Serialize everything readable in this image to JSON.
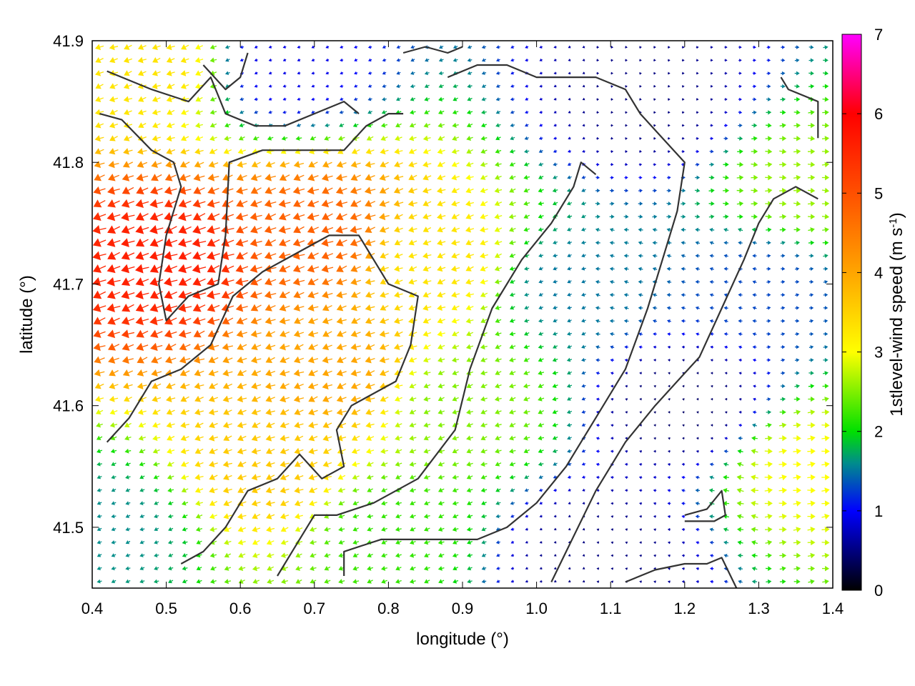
{
  "chart_data": {
    "type": "vector-field",
    "title": "",
    "xlabel": "longitude (°)",
    "ylabel": "latitude (°)",
    "colorbar_label_main": "1stlevel-wind speed (m s",
    "colorbar_label_sup": "-1",
    "colorbar_label_end": ")",
    "xlim": [
      0.4,
      1.4
    ],
    "ylim": [
      41.45,
      41.9
    ],
    "xticks": [
      0.4,
      0.5,
      0.6,
      0.7,
      0.8,
      0.9,
      1.0,
      1.1,
      1.2,
      1.3,
      1.4
    ],
    "xtick_labels": [
      "0.4",
      "0.5",
      "0.6",
      "0.7",
      "0.8",
      "0.9",
      "1.0",
      "1.1",
      "1.2",
      "1.3",
      "1.4"
    ],
    "yticks": [
      41.5,
      41.6,
      41.7,
      41.8,
      41.9
    ],
    "ytick_labels": [
      "41.5",
      "41.6",
      "41.7",
      "41.8",
      "41.9"
    ],
    "colorbar_range": [
      0,
      7
    ],
    "colorbar_ticks": [
      0,
      1,
      2,
      3,
      4,
      5,
      6,
      7
    ],
    "colorbar_tick_labels": [
      "0",
      "1",
      "2",
      "3",
      "4",
      "5",
      "6",
      "7"
    ],
    "colormap_stops": [
      {
        "value": 0,
        "color": "#000000"
      },
      {
        "value": 1,
        "color": "#0000ff"
      },
      {
        "value": 1.6,
        "color": "#008c8c"
      },
      {
        "value": 2,
        "color": "#00e000"
      },
      {
        "value": 3,
        "color": "#ffff00"
      },
      {
        "value": 4,
        "color": "#ffa500"
      },
      {
        "value": 5,
        "color": "#ff5000"
      },
      {
        "value": 6,
        "color": "#ff0000"
      },
      {
        "value": 7,
        "color": "#ff00ff"
      }
    ],
    "grid": false,
    "speed_centers": [
      {
        "lon": 0.5,
        "lat": 41.72,
        "speed": 5.6
      },
      {
        "lon": 0.7,
        "lat": 41.74,
        "speed": 4.8
      },
      {
        "lon": 0.72,
        "lat": 41.63,
        "speed": 4.0
      },
      {
        "lon": 0.64,
        "lat": 41.55,
        "speed": 3.6
      },
      {
        "lon": 0.86,
        "lat": 41.72,
        "speed": 3.3
      },
      {
        "lon": 0.48,
        "lat": 41.88,
        "speed": 3.3
      },
      {
        "lon": 0.9,
        "lat": 41.6,
        "speed": 2.5
      },
      {
        "lon": 1.05,
        "lat": 41.7,
        "speed": 1.5
      },
      {
        "lon": 1.15,
        "lat": 41.85,
        "speed": 0.5
      },
      {
        "lon": 1.2,
        "lat": 41.6,
        "speed": 0.4
      },
      {
        "lon": 1.37,
        "lat": 41.55,
        "speed": 3.0
      },
      {
        "lon": 1.37,
        "lat": 41.78,
        "speed": 2.6
      },
      {
        "lon": 1.3,
        "lat": 41.7,
        "speed": 1.3
      },
      {
        "lon": 0.42,
        "lat": 41.5,
        "speed": 1.6
      },
      {
        "lon": 0.66,
        "lat": 41.88,
        "speed": 0.9
      },
      {
        "lon": 0.8,
        "lat": 41.5,
        "speed": 2.2
      },
      {
        "lon": 1.08,
        "lat": 41.48,
        "speed": 0.5
      }
    ],
    "direction_zones": [
      {
        "lon_min": 0.4,
        "lon_max": 1.07,
        "lat_min": 41.45,
        "lat_max": 41.9,
        "direction_deg": 200
      },
      {
        "lon_min": 1.07,
        "lon_max": 1.4,
        "lat_min": 41.75,
        "lat_max": 41.9,
        "direction_deg": 0
      },
      {
        "lon_min": 1.07,
        "lon_max": 1.3,
        "lat_min": 41.45,
        "lat_max": 41.75,
        "direction_deg": 170
      },
      {
        "lon_min": 1.3,
        "lon_max": 1.4,
        "lat_min": 41.45,
        "lat_max": 41.75,
        "direction_deg": 5
      }
    ],
    "contours": [
      [
        [
          0.42,
          41.875
        ],
        [
          0.48,
          41.86
        ],
        [
          0.53,
          41.85
        ],
        [
          0.56,
          41.87
        ],
        [
          0.58,
          41.84
        ],
        [
          0.62,
          41.83
        ],
        [
          0.66,
          41.83
        ],
        [
          0.7,
          41.84
        ],
        [
          0.74,
          41.85
        ],
        [
          0.76,
          41.84
        ]
      ],
      [
        [
          0.41,
          41.84
        ],
        [
          0.44,
          41.835
        ],
        [
          0.48,
          41.81
        ],
        [
          0.51,
          41.8
        ],
        [
          0.52,
          41.78
        ],
        [
          0.5,
          41.74
        ],
        [
          0.49,
          41.7
        ],
        [
          0.5,
          41.67
        ],
        [
          0.53,
          41.69
        ],
        [
          0.57,
          41.7
        ],
        [
          0.58,
          41.74
        ],
        [
          0.585,
          41.8
        ],
        [
          0.63,
          41.81
        ],
        [
          0.68,
          41.81
        ],
        [
          0.74,
          41.81
        ],
        [
          0.77,
          41.83
        ],
        [
          0.8,
          41.84
        ],
        [
          0.82,
          41.84
        ]
      ],
      [
        [
          0.42,
          41.57
        ],
        [
          0.45,
          41.59
        ],
        [
          0.48,
          41.62
        ],
        [
          0.52,
          41.63
        ],
        [
          0.56,
          41.65
        ],
        [
          0.59,
          41.69
        ],
        [
          0.63,
          41.71
        ],
        [
          0.66,
          41.72
        ],
        [
          0.72,
          41.74
        ],
        [
          0.76,
          41.74
        ],
        [
          0.78,
          41.72
        ],
        [
          0.8,
          41.7
        ],
        [
          0.84,
          41.69
        ],
        [
          0.83,
          41.65
        ],
        [
          0.81,
          41.62
        ],
        [
          0.78,
          41.61
        ],
        [
          0.75,
          41.6
        ],
        [
          0.73,
          41.58
        ],
        [
          0.74,
          41.55
        ],
        [
          0.71,
          41.54
        ],
        [
          0.68,
          41.56
        ],
        [
          0.65,
          41.54
        ],
        [
          0.61,
          41.53
        ],
        [
          0.58,
          41.5
        ],
        [
          0.55,
          41.48
        ],
        [
          0.52,
          41.47
        ]
      ],
      [
        [
          0.65,
          41.46
        ],
        [
          0.67,
          41.48
        ],
        [
          0.7,
          41.51
        ],
        [
          0.73,
          41.51
        ],
        [
          0.78,
          41.52
        ],
        [
          0.84,
          41.54
        ],
        [
          0.89,
          41.58
        ],
        [
          0.91,
          41.63
        ],
        [
          0.94,
          41.68
        ],
        [
          0.98,
          41.72
        ],
        [
          1.02,
          41.75
        ],
        [
          1.05,
          41.78
        ],
        [
          1.06,
          41.8
        ],
        [
          1.08,
          41.79
        ]
      ],
      [
        [
          0.74,
          41.46
        ],
        [
          0.74,
          41.48
        ],
        [
          0.79,
          41.49
        ],
        [
          0.86,
          41.49
        ],
        [
          0.92,
          41.49
        ],
        [
          0.96,
          41.5
        ],
        [
          1.0,
          41.52
        ],
        [
          1.04,
          41.55
        ],
        [
          1.08,
          41.59
        ],
        [
          1.12,
          41.63
        ],
        [
          1.15,
          41.68
        ],
        [
          1.17,
          41.72
        ],
        [
          1.19,
          41.76
        ],
        [
          1.2,
          41.8
        ],
        [
          1.17,
          41.82
        ],
        [
          1.14,
          41.84
        ],
        [
          1.12,
          41.86
        ],
        [
          1.08,
          41.87
        ],
        [
          1.04,
          41.87
        ],
        [
          1.0,
          41.87
        ],
        [
          0.96,
          41.88
        ],
        [
          0.92,
          41.88
        ],
        [
          0.88,
          41.87
        ]
      ],
      [
        [
          1.02,
          41.455
        ],
        [
          1.04,
          41.48
        ],
        [
          1.08,
          41.53
        ],
        [
          1.12,
          41.57
        ],
        [
          1.16,
          41.6
        ],
        [
          1.19,
          41.62
        ],
        [
          1.22,
          41.64
        ],
        [
          1.25,
          41.68
        ],
        [
          1.28,
          41.72
        ],
        [
          1.3,
          41.75
        ],
        [
          1.32,
          41.77
        ],
        [
          1.35,
          41.78
        ],
        [
          1.38,
          41.77
        ]
      ],
      [
        [
          1.12,
          41.455
        ],
        [
          1.16,
          41.465
        ],
        [
          1.2,
          41.47
        ],
        [
          1.23,
          41.47
        ],
        [
          1.25,
          41.475
        ],
        [
          1.27,
          41.45
        ]
      ],
      [
        [
          1.2,
          41.51
        ],
        [
          1.23,
          41.515
        ],
        [
          1.25,
          41.53
        ],
        [
          1.255,
          41.51
        ],
        [
          1.24,
          41.505
        ],
        [
          1.2,
          41.505
        ]
      ],
      [
        [
          1.33,
          41.87
        ],
        [
          1.34,
          41.86
        ],
        [
          1.38,
          41.85
        ],
        [
          1.38,
          41.82
        ]
      ],
      [
        [
          0.55,
          41.88
        ],
        [
          0.58,
          41.86
        ],
        [
          0.6,
          41.87
        ],
        [
          0.61,
          41.89
        ]
      ],
      [
        [
          0.82,
          41.89
        ],
        [
          0.85,
          41.895
        ],
        [
          0.88,
          41.89
        ],
        [
          0.9,
          41.895
        ]
      ]
    ]
  }
}
